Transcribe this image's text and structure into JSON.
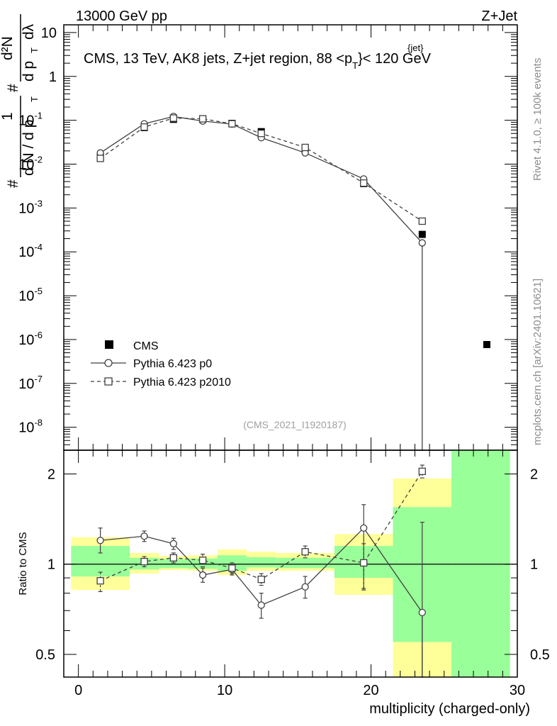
{
  "header": {
    "left": "13000 GeV pp",
    "right": "Z+Jet"
  },
  "side_labels": {
    "rivet": "Rivet 4.1.0, ≥ 100k events",
    "mcplots": "mcplots.cern.ch [arXiv:2401.10621]"
  },
  "chart_data": [
    {
      "type": "line",
      "panel": "main",
      "title": "CMS, 13 TeV, AK8 jets, Z+jet region, 88 <p_T^{jet}< 120 GeV",
      "title_parts": {
        "a": "CMS, 13 TeV, AK8 jets, Z+jet region, 88 <p",
        "sup": "{jet}",
        "sub": "T",
        "b": "}< 120 GeV"
      },
      "ylabel_parts": {
        "hash1": "#",
        "one": "1",
        "den": "d N / d p",
        "T": "T",
        "hash2": "#",
        "num": "d²N",
        "den2": "d p",
        "T2": "T",
        "dl": "dλ"
      },
      "yscale": "log",
      "ylim": [
        3e-09,
        15
      ],
      "xlim": [
        -1,
        30
      ],
      "y_ticks": [
        {
          "v": 10,
          "m": "10",
          "e": ""
        },
        {
          "v": 1,
          "m": "1",
          "e": ""
        },
        {
          "v": 0.1,
          "m": "10",
          "e": "-1"
        },
        {
          "v": 0.01,
          "m": "10",
          "e": "-2"
        },
        {
          "v": 0.001,
          "m": "10",
          "e": "-3"
        },
        {
          "v": 0.0001,
          "m": "10",
          "e": "-4"
        },
        {
          "v": 1e-05,
          "m": "10",
          "e": "-5"
        },
        {
          "v": 1e-06,
          "m": "10",
          "e": "-6"
        },
        {
          "v": 1e-07,
          "m": "10",
          "e": "-7"
        },
        {
          "v": 1e-08,
          "m": "10",
          "e": "-8"
        }
      ],
      "watermark": "(CMS_2021_I1920187)",
      "legend_position": "lower-left",
      "legend": [
        "CMS",
        "Pythia 6.423 p0",
        "Pythia 6.423 p2010"
      ],
      "series": [
        {
          "name": "CMS",
          "marker": "filled-square",
          "x": [
            1.5,
            4.5,
            6.5,
            8.5,
            10.5,
            12.5,
            15.5,
            19.5,
            23.5
          ],
          "y": [
            0.015,
            0.068,
            0.105,
            0.105,
            0.085,
            0.055,
            0.022,
            0.0036,
            0.00025
          ]
        },
        {
          "name": "Pythia 6.423 p0",
          "marker": "open-circle",
          "line": "solid",
          "x": [
            1.5,
            4.5,
            6.5,
            8.5,
            10.5,
            12.5,
            15.5,
            19.5,
            23.5
          ],
          "y": [
            0.018,
            0.083,
            0.122,
            0.096,
            0.082,
            0.04,
            0.018,
            0.0046,
            0.00016
          ]
        },
        {
          "name": "Pythia 6.423 p2010",
          "marker": "open-square",
          "line": "dashed",
          "x": [
            1.5,
            4.5,
            6.5,
            8.5,
            10.5,
            12.5,
            15.5,
            19.5,
            23.5
          ],
          "y": [
            0.0135,
            0.07,
            0.112,
            0.108,
            0.083,
            0.05,
            0.024,
            0.0037,
            0.0005
          ]
        }
      ]
    },
    {
      "type": "line",
      "panel": "ratio",
      "ylabel": "Ratio to CMS",
      "xlabel": "multiplicity (charged-only)",
      "yscale": "log",
      "ylim": [
        0.42,
        2.4
      ],
      "xlim": [
        -1,
        30
      ],
      "y_ticks": [
        {
          "v": 2,
          "label": "2"
        },
        {
          "v": 1,
          "label": "1"
        },
        {
          "v": 0.5,
          "label": "0.5"
        }
      ],
      "x_ticks": [
        {
          "v": 0,
          "label": "0"
        },
        {
          "v": 10,
          "label": "10"
        },
        {
          "v": 20,
          "label": "20"
        },
        {
          "v": 30,
          "label": "30"
        }
      ],
      "bands": {
        "edges": [
          -0.5,
          3.5,
          5.5,
          7.5,
          9.5,
          11.5,
          13.5,
          17.5,
          21.5,
          25.5,
          29.5
        ],
        "yellow": [
          [
            0.82,
            1.23
          ],
          [
            0.93,
            1.09
          ],
          [
            0.955,
            1.065
          ],
          [
            0.95,
            1.07
          ],
          [
            0.92,
            1.12
          ],
          [
            0.95,
            1.1
          ],
          [
            0.95,
            1.09
          ],
          [
            0.79,
            1.26
          ],
          [
            0.4,
            1.93
          ],
          [
            0.4,
            2.4
          ]
        ],
        "green": [
          [
            0.91,
            1.15
          ],
          [
            0.96,
            1.05
          ],
          [
            0.97,
            1.04
          ],
          [
            0.965,
            1.045
          ],
          [
            0.95,
            1.07
          ],
          [
            0.975,
            1.055
          ],
          [
            0.97,
            1.05
          ],
          [
            0.9,
            1.15
          ],
          [
            0.55,
            1.55
          ],
          [
            0.4,
            2.4
          ]
        ]
      },
      "series": [
        {
          "name": "Pythia 6.423 p0",
          "marker": "open-circle",
          "line": "solid",
          "x": [
            1.5,
            4.5,
            6.5,
            8.5,
            10.5,
            12.5,
            15.5,
            19.5,
            23.5
          ],
          "y": [
            1.2,
            1.24,
            1.17,
            0.92,
            0.96,
            0.73,
            0.84,
            1.32,
            0.69
          ],
          "err": [
            [
              0.11,
              0.12
            ],
            [
              0.05,
              0.05
            ],
            [
              0.05,
              0.05
            ],
            [
              0.05,
              0.05
            ],
            [
              0.04,
              0.04
            ],
            [
              0.07,
              0.07
            ],
            [
              0.07,
              0.07
            ],
            [
              0.5,
              0.26
            ],
            [
              0.4,
              0.69
            ]
          ]
        },
        {
          "name": "Pythia 6.423 p2010",
          "marker": "open-square",
          "line": "dashed",
          "x": [
            1.5,
            4.5,
            6.5,
            8.5,
            10.5,
            12.5,
            15.5,
            19.5,
            23.5
          ],
          "y": [
            0.88,
            1.02,
            1.05,
            1.03,
            0.97,
            0.89,
            1.1,
            1.01,
            2.04
          ],
          "err": [
            [
              0.07,
              0.06
            ],
            [
              0.04,
              0.04
            ],
            [
              0.04,
              0.04
            ],
            [
              0.05,
              0.05
            ],
            [
              0.04,
              0.04
            ],
            [
              0.04,
              0.04
            ],
            [
              0.05,
              0.05
            ],
            [
              0.18,
              0.16
            ],
            [
              0.1,
              0.1
            ]
          ]
        }
      ]
    }
  ]
}
